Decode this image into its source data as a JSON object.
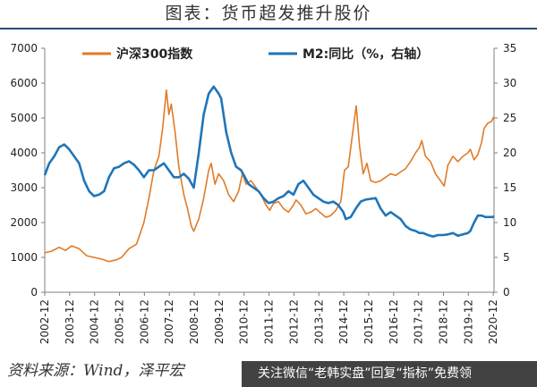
{
  "page": {
    "title": "图表：货币超发推升股价",
    "source": "资料来源：Wind，泽平宏",
    "watermark": "关注微信“老韩实盘”回复“指标”免费领"
  },
  "chart_data": {
    "type": "line",
    "xlabel": "",
    "ylabel_left": "",
    "ylabel_right": "",
    "x_ticks": [
      "2002-12",
      "2003-12",
      "2004-12",
      "2005-12",
      "2006-12",
      "2007-12",
      "2008-12",
      "2009-12",
      "2010-12",
      "2011-12",
      "2012-12",
      "2013-12",
      "2014-12",
      "2015-12",
      "2016-12",
      "2017-12",
      "2018-12",
      "2019-12",
      "2020-12"
    ],
    "y_left": {
      "min": 0,
      "max": 7000,
      "ticks": [
        0,
        1000,
        2000,
        3000,
        4000,
        5000,
        6000,
        7000
      ]
    },
    "y_right": {
      "min": 0,
      "max": 35,
      "ticks": [
        0,
        5,
        10,
        15,
        20,
        25,
        30,
        35
      ]
    },
    "grid": false,
    "legend_position": "top",
    "series": [
      {
        "name": "沪深300指数",
        "axis": "left",
        "color": "#e07b28",
        "points": [
          [
            2002.92,
            1130
          ],
          [
            2003.2,
            1180
          ],
          [
            2003.5,
            1290
          ],
          [
            2003.75,
            1200
          ],
          [
            2004.0,
            1330
          ],
          [
            2004.3,
            1250
          ],
          [
            2004.6,
            1050
          ],
          [
            2004.9,
            1000
          ],
          [
            2005.2,
            950
          ],
          [
            2005.5,
            880
          ],
          [
            2005.8,
            930
          ],
          [
            2006.0,
            1000
          ],
          [
            2006.3,
            1250
          ],
          [
            2006.6,
            1380
          ],
          [
            2006.9,
            2000
          ],
          [
            2007.1,
            2700
          ],
          [
            2007.3,
            3500
          ],
          [
            2007.5,
            3900
          ],
          [
            2007.65,
            4700
          ],
          [
            2007.8,
            5800
          ],
          [
            2007.9,
            5100
          ],
          [
            2008.0,
            5400
          ],
          [
            2008.15,
            4600
          ],
          [
            2008.3,
            3600
          ],
          [
            2008.5,
            2800
          ],
          [
            2008.65,
            2400
          ],
          [
            2008.8,
            1900
          ],
          [
            2008.9,
            1750
          ],
          [
            2009.1,
            2100
          ],
          [
            2009.3,
            2700
          ],
          [
            2009.5,
            3500
          ],
          [
            2009.6,
            3700
          ],
          [
            2009.75,
            3100
          ],
          [
            2009.9,
            3400
          ],
          [
            2010.1,
            3200
          ],
          [
            2010.3,
            2800
          ],
          [
            2010.5,
            2600
          ],
          [
            2010.7,
            2900
          ],
          [
            2010.85,
            3400
          ],
          [
            2011.0,
            3100
          ],
          [
            2011.2,
            3200
          ],
          [
            2011.4,
            3000
          ],
          [
            2011.6,
            2800
          ],
          [
            2011.8,
            2500
          ],
          [
            2011.95,
            2350
          ],
          [
            2012.1,
            2550
          ],
          [
            2012.3,
            2600
          ],
          [
            2012.5,
            2400
          ],
          [
            2012.7,
            2300
          ],
          [
            2012.9,
            2500
          ],
          [
            2013.0,
            2650
          ],
          [
            2013.2,
            2500
          ],
          [
            2013.4,
            2250
          ],
          [
            2013.6,
            2300
          ],
          [
            2013.8,
            2400
          ],
          [
            2013.95,
            2300
          ],
          [
            2014.2,
            2150
          ],
          [
            2014.4,
            2200
          ],
          [
            2014.6,
            2350
          ],
          [
            2014.8,
            2600
          ],
          [
            2014.95,
            3500
          ],
          [
            2015.1,
            3600
          ],
          [
            2015.3,
            4700
          ],
          [
            2015.42,
            5350
          ],
          [
            2015.55,
            4200
          ],
          [
            2015.7,
            3400
          ],
          [
            2015.85,
            3700
          ],
          [
            2016.0,
            3200
          ],
          [
            2016.2,
            3150
          ],
          [
            2016.4,
            3200
          ],
          [
            2016.6,
            3300
          ],
          [
            2016.8,
            3400
          ],
          [
            2017.0,
            3350
          ],
          [
            2017.2,
            3450
          ],
          [
            2017.4,
            3550
          ],
          [
            2017.6,
            3750
          ],
          [
            2017.8,
            4000
          ],
          [
            2017.95,
            4150
          ],
          [
            2018.05,
            4350
          ],
          [
            2018.2,
            3900
          ],
          [
            2018.4,
            3750
          ],
          [
            2018.6,
            3400
          ],
          [
            2018.8,
            3200
          ],
          [
            2018.95,
            3050
          ],
          [
            2019.1,
            3650
          ],
          [
            2019.3,
            3900
          ],
          [
            2019.5,
            3750
          ],
          [
            2019.7,
            3900
          ],
          [
            2019.9,
            4000
          ],
          [
            2020.0,
            4100
          ],
          [
            2020.15,
            3800
          ],
          [
            2020.3,
            3950
          ],
          [
            2020.45,
            4300
          ],
          [
            2020.55,
            4700
          ],
          [
            2020.7,
            4850
          ],
          [
            2020.85,
            4900
          ],
          [
            2020.95,
            5050
          ]
        ]
      },
      {
        "name": "M2:同比（%，右轴）",
        "axis": "right",
        "color": "#1f75b8",
        "points": [
          [
            2002.92,
            16.8
          ],
          [
            2003.1,
            18.5
          ],
          [
            2003.3,
            19.5
          ],
          [
            2003.5,
            20.8
          ],
          [
            2003.7,
            21.2
          ],
          [
            2003.9,
            20.5
          ],
          [
            2004.1,
            19.5
          ],
          [
            2004.3,
            18.5
          ],
          [
            2004.5,
            16.0
          ],
          [
            2004.7,
            14.5
          ],
          [
            2004.9,
            13.8
          ],
          [
            2005.1,
            14.0
          ],
          [
            2005.3,
            14.5
          ],
          [
            2005.5,
            16.5
          ],
          [
            2005.7,
            17.8
          ],
          [
            2005.9,
            18.0
          ],
          [
            2006.1,
            18.5
          ],
          [
            2006.3,
            18.8
          ],
          [
            2006.5,
            18.3
          ],
          [
            2006.7,
            17.5
          ],
          [
            2006.9,
            16.5
          ],
          [
            2007.1,
            17.5
          ],
          [
            2007.3,
            17.5
          ],
          [
            2007.5,
            18.0
          ],
          [
            2007.7,
            18.5
          ],
          [
            2007.9,
            17.5
          ],
          [
            2008.1,
            16.5
          ],
          [
            2008.3,
            16.5
          ],
          [
            2008.5,
            17.0
          ],
          [
            2008.7,
            16.3
          ],
          [
            2008.9,
            15.0
          ],
          [
            2009.1,
            20.0
          ],
          [
            2009.3,
            25.5
          ],
          [
            2009.5,
            28.5
          ],
          [
            2009.7,
            29.5
          ],
          [
            2009.9,
            28.5
          ],
          [
            2010.0,
            27.8
          ],
          [
            2010.2,
            23.0
          ],
          [
            2010.4,
            20.0
          ],
          [
            2010.6,
            18.0
          ],
          [
            2010.8,
            17.5
          ],
          [
            2010.95,
            16.5
          ],
          [
            2011.1,
            15.5
          ],
          [
            2011.3,
            15.0
          ],
          [
            2011.5,
            14.5
          ],
          [
            2011.7,
            13.5
          ],
          [
            2011.9,
            12.8
          ],
          [
            2012.1,
            13.0
          ],
          [
            2012.3,
            13.5
          ],
          [
            2012.5,
            13.8
          ],
          [
            2012.7,
            14.5
          ],
          [
            2012.9,
            14.0
          ],
          [
            2013.1,
            15.5
          ],
          [
            2013.3,
            16.0
          ],
          [
            2013.5,
            15.0
          ],
          [
            2013.7,
            14.0
          ],
          [
            2013.9,
            13.5
          ],
          [
            2014.1,
            13.0
          ],
          [
            2014.3,
            12.8
          ],
          [
            2014.5,
            13.0
          ],
          [
            2014.7,
            12.5
          ],
          [
            2014.9,
            11.5
          ],
          [
            2015.0,
            10.5
          ],
          [
            2015.2,
            10.8
          ],
          [
            2015.4,
            12.0
          ],
          [
            2015.6,
            13.0
          ],
          [
            2015.8,
            13.3
          ],
          [
            2016.0,
            13.4
          ],
          [
            2016.2,
            13.5
          ],
          [
            2016.4,
            12.0
          ],
          [
            2016.6,
            11.0
          ],
          [
            2016.8,
            11.5
          ],
          [
            2017.0,
            11.0
          ],
          [
            2017.2,
            10.5
          ],
          [
            2017.4,
            9.5
          ],
          [
            2017.6,
            9.0
          ],
          [
            2017.8,
            8.8
          ],
          [
            2017.95,
            8.5
          ],
          [
            2018.1,
            8.5
          ],
          [
            2018.3,
            8.2
          ],
          [
            2018.5,
            8.0
          ],
          [
            2018.7,
            8.2
          ],
          [
            2018.9,
            8.2
          ],
          [
            2019.1,
            8.3
          ],
          [
            2019.3,
            8.5
          ],
          [
            2019.5,
            8.1
          ],
          [
            2019.7,
            8.3
          ],
          [
            2019.9,
            8.5
          ],
          [
            2020.0,
            8.8
          ],
          [
            2020.15,
            10.0
          ],
          [
            2020.3,
            11.0
          ],
          [
            2020.45,
            11.0
          ],
          [
            2020.6,
            10.8
          ],
          [
            2020.75,
            10.8
          ],
          [
            2020.9,
            10.8
          ],
          [
            2020.95,
            10.9
          ]
        ]
      }
    ]
  }
}
